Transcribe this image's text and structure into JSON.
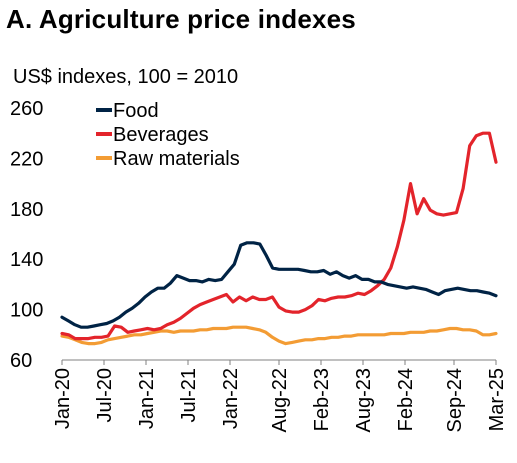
{
  "title": "A. Agriculture price indexes",
  "subtitle": "US$ indexes, 100 = 2010",
  "chart_data": {
    "type": "line",
    "title": "A. Agriculture price indexes",
    "ylabel": "US$ indexes, 100 = 2010",
    "ylim": [
      60,
      260
    ],
    "yticks": [
      60,
      100,
      140,
      180,
      220,
      260
    ],
    "xlim": [
      "Jan-20",
      "Mar-25"
    ],
    "xtick_labels": [
      "Jan-20",
      "Jul-20",
      "Jan-21",
      "Jul-21",
      "Jan-22",
      "Aug-22",
      "Feb-23",
      "Aug-23",
      "Feb-24",
      "Sep-24",
      "Mar-25"
    ],
    "xtick_months": [
      0,
      6,
      12,
      18,
      24,
      31,
      37,
      43,
      49,
      56,
      62
    ],
    "grid": false,
    "legend_position": "top-left",
    "colors": {
      "Food": "#002345",
      "Beverages": "#e3242b",
      "Raw materials": "#f39c34"
    },
    "series": [
      {
        "name": "Food",
        "values": [
          94,
          91,
          88,
          86,
          86,
          87,
          88,
          89,
          91,
          94,
          98,
          101,
          105,
          110,
          114,
          117,
          117,
          121,
          127,
          125,
          123,
          123,
          122,
          124,
          123,
          124,
          130,
          136,
          151,
          153,
          153,
          152,
          143,
          133,
          132,
          132,
          132,
          132,
          131,
          130,
          130,
          131,
          128,
          130,
          127,
          125,
          127,
          124,
          124,
          122,
          122,
          120,
          119,
          118,
          117,
          118,
          117,
          116,
          114,
          112,
          115,
          116,
          117,
          116,
          115,
          115,
          114,
          113,
          111
        ]
      },
      {
        "name": "Beverages",
        "values": [
          81,
          80,
          77,
          77,
          77,
          78,
          78,
          79,
          87,
          86,
          82,
          83,
          84,
          85,
          84,
          85,
          88,
          90,
          93,
          97,
          101,
          104,
          106,
          108,
          110,
          112,
          106,
          110,
          107,
          110,
          108,
          108,
          110,
          102,
          99,
          98,
          98,
          100,
          103,
          108,
          107,
          109,
          110,
          110,
          111,
          113,
          112,
          115,
          119,
          124,
          133,
          150,
          171,
          200,
          176,
          188,
          179,
          176,
          175,
          176,
          177,
          196,
          230,
          238,
          240,
          240,
          217
        ]
      },
      {
        "name": "Raw materials",
        "values": [
          79,
          78,
          76,
          74,
          73,
          73,
          74,
          76,
          77,
          78,
          79,
          80,
          80,
          81,
          82,
          83,
          83,
          82,
          83,
          83,
          83,
          84,
          84,
          85,
          85,
          85,
          86,
          86,
          86,
          85,
          84,
          82,
          78,
          75,
          73,
          74,
          75,
          76,
          76,
          77,
          77,
          78,
          78,
          79,
          79,
          80,
          80,
          80,
          80,
          80,
          81,
          81,
          81,
          82,
          82,
          82,
          83,
          83,
          84,
          85,
          85,
          84,
          84,
          83,
          80,
          80,
          81
        ]
      }
    ]
  }
}
